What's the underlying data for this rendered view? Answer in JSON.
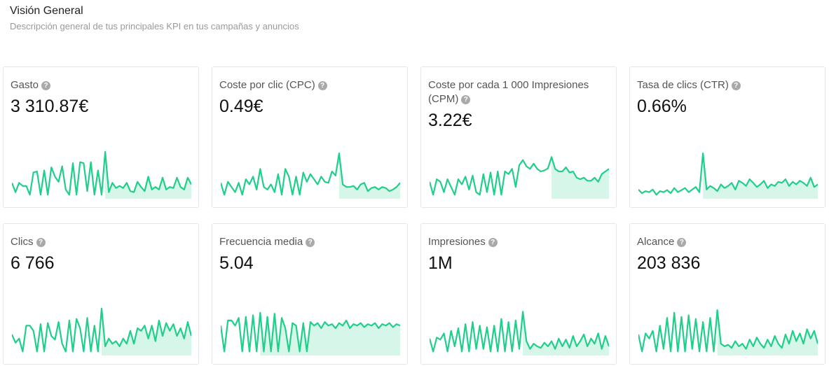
{
  "header": {
    "title": "Visión General",
    "subtitle": "Descripción general de tus principales KPI en tus campañas y anuncios"
  },
  "colors": {
    "line": "#1fcf8a",
    "fill": "#d6f6ea",
    "help_icon": "#a9a9a9"
  },
  "kpis": [
    {
      "label": "Gasto",
      "value": "3 310.87€",
      "icon": "help-circle-icon",
      "sparkline": [
        0.28,
        0.1,
        0.28,
        0.22,
        0.22,
        0.05,
        0.48,
        0.5,
        0.05,
        0.52,
        0.05,
        0.58,
        0.4,
        0.3,
        0.6,
        0.15,
        0.05,
        0.66,
        0.05,
        0.68,
        0.66,
        0.12,
        0.68,
        0.05,
        0.52,
        0.05,
        0.88,
        0.1,
        0.28,
        0.18,
        0.22,
        0.18,
        0.28,
        0.12,
        0.1,
        0.3,
        0.2,
        0.12,
        0.4,
        0.15,
        0.2,
        0.15,
        0.38,
        0.15,
        0.2,
        0.18,
        0.38,
        0.2,
        0.15,
        0.38,
        0.25
      ]
    },
    {
      "label": "Coste por clic (CPC)",
      "value": "0.49€",
      "icon": "help-circle-icon",
      "sparkline": [
        0.28,
        0.05,
        0.3,
        0.2,
        0.1,
        0.28,
        0.05,
        0.35,
        0.25,
        0.4,
        0.15,
        0.55,
        0.2,
        0.15,
        0.25,
        0.1,
        0.45,
        0.05,
        0.55,
        0.4,
        0.05,
        0.4,
        0.05,
        0.48,
        0.3,
        0.45,
        0.35,
        0.25,
        0.4,
        0.3,
        0.28,
        0.5,
        0.42,
        0.85,
        0.25,
        0.2,
        0.2,
        0.22,
        0.15,
        0.25,
        0.28,
        0.12,
        0.18,
        0.2,
        0.15,
        0.2,
        0.18,
        0.12,
        0.15,
        0.2,
        0.28
      ]
    },
    {
      "label": "Coste por cada 1 000 Impresiones (CPM)",
      "value": "3.22€",
      "icon": "help-circle-icon",
      "sparkline": [
        0.3,
        0.05,
        0.35,
        0.3,
        0.1,
        0.35,
        0.2,
        0.05,
        0.35,
        0.25,
        0.4,
        0.15,
        0.42,
        0.1,
        0.05,
        0.45,
        0.1,
        0.48,
        0.05,
        0.5,
        0.05,
        0.5,
        0.45,
        0.55,
        0.2,
        0.62,
        0.72,
        0.6,
        0.55,
        0.65,
        0.55,
        0.5,
        0.52,
        0.56,
        0.78,
        0.55,
        0.5,
        0.5,
        0.58,
        0.48,
        0.5,
        0.38,
        0.35,
        0.38,
        0.32,
        0.32,
        0.38,
        0.3,
        0.45,
        0.5,
        0.55
      ]
    },
    {
      "label": "Tasa de clics (CTR)",
      "value": "0.66%",
      "icon": "help-circle-icon",
      "sparkline": [
        0.15,
        0.08,
        0.12,
        0.1,
        0.15,
        0.05,
        0.12,
        0.1,
        0.14,
        0.08,
        0.18,
        0.1,
        0.14,
        0.18,
        0.1,
        0.15,
        0.2,
        0.1,
        0.85,
        0.15,
        0.22,
        0.18,
        0.12,
        0.25,
        0.18,
        0.22,
        0.28,
        0.15,
        0.32,
        0.28,
        0.22,
        0.35,
        0.28,
        0.2,
        0.25,
        0.32,
        0.18,
        0.25,
        0.22,
        0.3,
        0.28,
        0.35,
        0.22,
        0.3,
        0.25,
        0.32,
        0.28,
        0.22,
        0.38,
        0.2,
        0.25
      ]
    },
    {
      "label": "Clics",
      "value": "6 766",
      "icon": "help-circle-icon",
      "sparkline": [
        0.38,
        0.22,
        0.3,
        0.05,
        0.55,
        0.55,
        0.45,
        0.05,
        0.58,
        0.05,
        0.6,
        0.35,
        0.28,
        0.62,
        0.2,
        0.05,
        0.65,
        0.05,
        0.68,
        0.5,
        0.05,
        0.7,
        0.05,
        0.55,
        0.05,
        0.88,
        0.15,
        0.3,
        0.2,
        0.25,
        0.15,
        0.3,
        0.2,
        0.45,
        0.2,
        0.5,
        0.45,
        0.55,
        0.3,
        0.55,
        0.25,
        0.65,
        0.35,
        0.6,
        0.45,
        0.58,
        0.35,
        0.5,
        0.3,
        0.62,
        0.35
      ]
    },
    {
      "label": "Frecuencia media",
      "value": "5.04",
      "icon": "help-circle-icon",
      "sparkline": [
        0.55,
        0.05,
        0.65,
        0.65,
        0.55,
        0.7,
        0.05,
        0.72,
        0.05,
        0.75,
        0.05,
        0.8,
        0.05,
        0.72,
        0.05,
        0.78,
        0.05,
        0.7,
        0.5,
        0.05,
        0.6,
        0.55,
        0.05,
        0.6,
        0.05,
        0.62,
        0.55,
        0.6,
        0.5,
        0.62,
        0.55,
        0.58,
        0.5,
        0.6,
        0.55,
        0.65,
        0.5,
        0.58,
        0.55,
        0.6,
        0.52,
        0.58,
        0.55,
        0.6,
        0.5,
        0.58,
        0.55,
        0.6,
        0.52,
        0.58,
        0.55
      ]
    },
    {
      "label": "Impresiones",
      "value": "1M",
      "icon": "help-circle-icon",
      "sparkline": [
        0.3,
        0.05,
        0.32,
        0.28,
        0.4,
        0.05,
        0.45,
        0.15,
        0.5,
        0.05,
        0.58,
        0.05,
        0.62,
        0.1,
        0.55,
        0.1,
        0.52,
        0.05,
        0.55,
        0.05,
        0.68,
        0.05,
        0.62,
        0.05,
        0.65,
        0.1,
        0.82,
        0.25,
        0.1,
        0.2,
        0.15,
        0.12,
        0.22,
        0.15,
        0.25,
        0.1,
        0.3,
        0.15,
        0.28,
        0.12,
        0.35,
        0.15,
        0.25,
        0.38,
        0.15,
        0.3,
        0.2,
        0.4,
        0.1,
        0.35,
        0.15
      ]
    },
    {
      "label": "Alcance",
      "value": "203 836",
      "icon": "help-circle-icon",
      "sparkline": [
        0.38,
        0.05,
        0.4,
        0.3,
        0.45,
        0.05,
        0.55,
        0.1,
        0.7,
        0.05,
        0.8,
        0.05,
        0.72,
        0.05,
        0.75,
        0.1,
        0.68,
        0.05,
        0.62,
        0.05,
        0.7,
        0.05,
        0.85,
        0.2,
        0.15,
        0.18,
        0.12,
        0.25,
        0.15,
        0.2,
        0.1,
        0.28,
        0.15,
        0.32,
        0.2,
        0.12,
        0.28,
        0.15,
        0.35,
        0.2,
        0.12,
        0.38,
        0.2,
        0.45,
        0.25,
        0.4,
        0.2,
        0.48,
        0.3,
        0.45,
        0.2
      ]
    }
  ]
}
